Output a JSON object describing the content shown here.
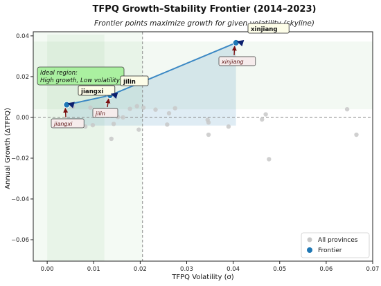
{
  "chart_data": {
    "type": "scatter",
    "title": "TFPQ Growth–Stability Frontier (2014–2023)",
    "subtitle": "Frontier points maximize growth for given volatility (skyline)",
    "xlabel": "TFPQ Volatility (σ)",
    "ylabel": "Annual Growth (ΔTFPQ)",
    "xlim": [
      -0.003,
      0.07
    ],
    "ylim": [
      -0.0705,
      0.042
    ],
    "xticks": [
      0.0,
      0.01,
      0.02,
      0.03,
      0.04,
      0.05,
      0.06,
      0.07
    ],
    "xtick_labels": [
      "0.00",
      "0.01",
      "0.02",
      "0.03",
      "0.04",
      "0.05",
      "0.06",
      "0.07"
    ],
    "yticks": [
      -0.06,
      -0.04,
      -0.02,
      0.0,
      0.02,
      0.04
    ],
    "ytick_labels": [
      "−0.06",
      "−0.04",
      "−0.02",
      "0.00",
      "0.02",
      "0.04"
    ],
    "median_x": 0.0205,
    "median_y": 0.0,
    "region_label": "Ideal region:\nHigh growth, Low volatility",
    "legend_position": "lower-right",
    "series": [
      {
        "name": "All provinces",
        "color": "#c8c8c8",
        "points": [
          [
            0.0042,
            0.0062
          ],
          [
            0.0055,
            0.0052
          ],
          [
            0.0082,
            -0.0045
          ],
          [
            0.0093,
            0.0048
          ],
          [
            0.0098,
            -0.0038
          ],
          [
            0.0135,
            0.0108
          ],
          [
            0.0138,
            -0.0105
          ],
          [
            0.0143,
            -0.0032
          ],
          [
            0.0152,
            0.0002
          ],
          [
            0.0163,
            0.0
          ],
          [
            0.0178,
            0.0042
          ],
          [
            0.0193,
            0.0055
          ],
          [
            0.0197,
            -0.006
          ],
          [
            0.0207,
            0.0048
          ],
          [
            0.0233,
            0.0038
          ],
          [
            0.0258,
            -0.0035
          ],
          [
            0.0262,
            0.002
          ],
          [
            0.0275,
            0.0045
          ],
          [
            0.0345,
            -0.0012
          ],
          [
            0.0347,
            -0.0025
          ],
          [
            0.0347,
            -0.0085
          ],
          [
            0.039,
            -0.0045
          ],
          [
            0.0406,
            0.0366
          ],
          [
            0.0462,
            -0.001
          ],
          [
            0.047,
            0.0015
          ],
          [
            0.0477,
            -0.0205
          ],
          [
            0.0645,
            0.004
          ],
          [
            0.0665,
            -0.0085
          ]
        ]
      },
      {
        "name": "Frontier",
        "color": "#1f77b4",
        "points": [
          [
            0.0042,
            0.0062
          ],
          [
            0.0135,
            0.0108
          ],
          [
            0.0406,
            0.0366
          ]
        ]
      }
    ],
    "annotations": [
      {
        "text": "jiangxi",
        "x": 0.0042,
        "y": 0.0062
      },
      {
        "text": "jilin",
        "x": 0.0135,
        "y": 0.0108
      },
      {
        "text": "xinjiang",
        "x": 0.0406,
        "y": 0.0366
      }
    ],
    "annotation_tags": [
      "jiangxi",
      "jilin",
      "xinjiang"
    ]
  }
}
